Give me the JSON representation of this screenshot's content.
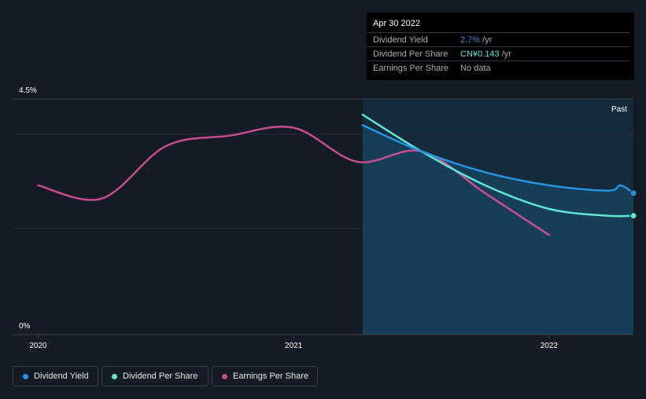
{
  "tooltip": {
    "date": "Apr 30 2022",
    "rows": [
      {
        "label": "Dividend Yield",
        "value": "2.7%",
        "unit": " /yr",
        "color": "#2394df"
      },
      {
        "label": "Dividend Per Share",
        "value": "CN¥0.143",
        "unit": " /yr",
        "color": "#5ce5d5"
      },
      {
        "label": "Earnings Per Share",
        "value": "No data",
        "unit": "",
        "color": "#a8abb0"
      }
    ]
  },
  "chart_data": {
    "type": "line",
    "y_top_label": "4.5%",
    "y_bottom_label": "0%",
    "ylim": [
      0,
      4.5
    ],
    "xlim": [
      2019.9,
      2022.33
    ],
    "x_ticks": [
      {
        "value": 2020.0,
        "label": "2020"
      },
      {
        "value": 2021.0,
        "label": "2021"
      },
      {
        "value": 2022.0,
        "label": "2022"
      }
    ],
    "past_label": "Past",
    "past_region_start": 2021.27,
    "series": [
      {
        "name": "Dividend Yield",
        "color": "#2394df",
        "points": [
          [
            2021.27,
            4.0
          ],
          [
            2021.5,
            3.5
          ],
          [
            2021.75,
            3.1
          ],
          [
            2022.0,
            2.85
          ],
          [
            2022.23,
            2.75
          ],
          [
            2022.28,
            2.85
          ],
          [
            2022.33,
            2.7
          ]
        ]
      },
      {
        "name": "Dividend Per Share",
        "color": "#5ce5d5",
        "points": [
          [
            2021.27,
            4.2
          ],
          [
            2021.5,
            3.5
          ],
          [
            2021.75,
            2.85
          ],
          [
            2022.0,
            2.4
          ],
          [
            2022.23,
            2.27
          ],
          [
            2022.33,
            2.27
          ]
        ]
      },
      {
        "name": "Earnings Per Share",
        "color": "#c94b8e",
        "points": [
          [
            2020.0,
            2.85
          ],
          [
            2020.25,
            2.6
          ],
          [
            2020.5,
            3.6
          ],
          [
            2020.75,
            3.8
          ],
          [
            2021.0,
            3.95
          ],
          [
            2021.25,
            3.3
          ],
          [
            2021.5,
            3.5
          ],
          [
            2021.75,
            2.7
          ],
          [
            2022.0,
            1.9
          ]
        ]
      }
    ]
  },
  "legend": [
    {
      "label": "Dividend Yield",
      "color": "#2394df"
    },
    {
      "label": "Dividend Per Share",
      "color": "#5ce5d5"
    },
    {
      "label": "Earnings Per Share",
      "color": "#c94b8e"
    }
  ]
}
